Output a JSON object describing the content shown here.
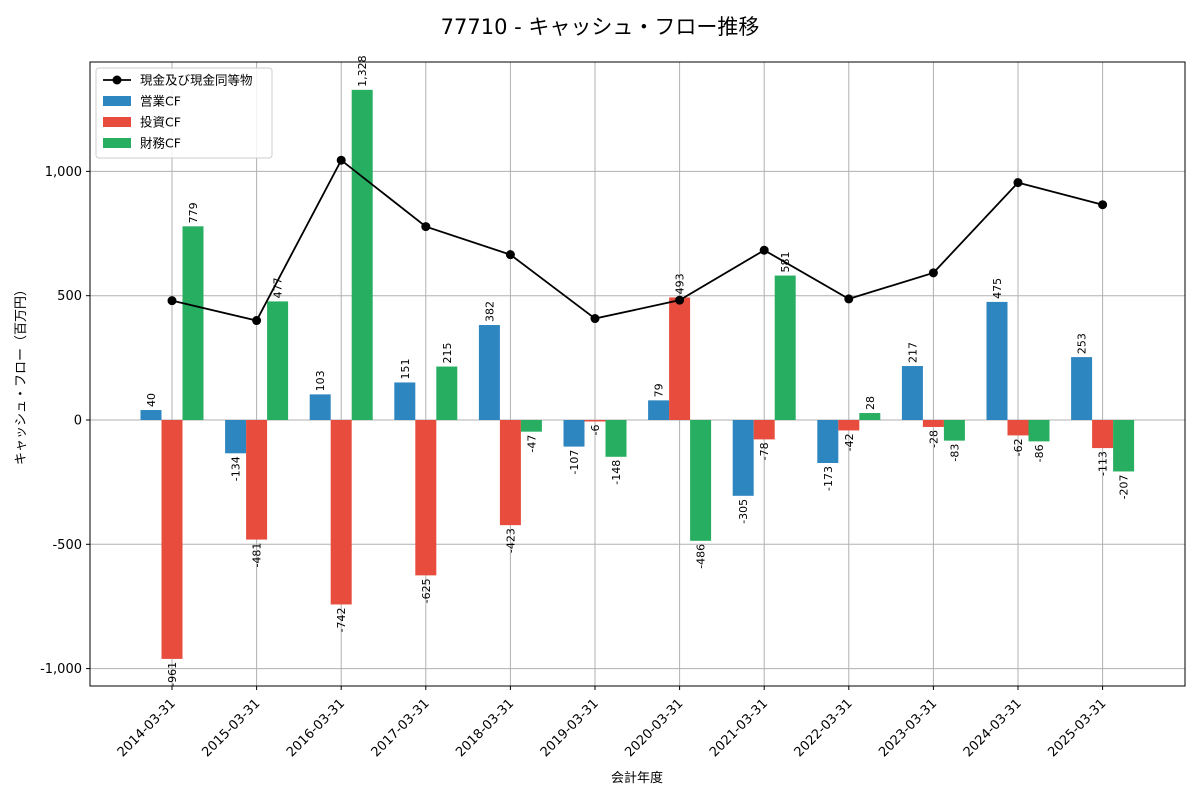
{
  "chart_data": {
    "type": "bar",
    "title": "77710 - キャッシュ・フロー推移",
    "xlabel": "会計年度",
    "ylabel": "キャッシュ・フロー（百万円）",
    "ylim": [
      -1070,
      1440
    ],
    "yticks": [
      -1000,
      -500,
      0,
      500,
      1000
    ],
    "ytick_labels": [
      "-1,000",
      "-500",
      "0",
      "500",
      "1,000"
    ],
    "grid": true,
    "legend_position": "top-left",
    "categories": [
      "2014-03-31",
      "2015-03-31",
      "2016-03-31",
      "2017-03-31",
      "2018-03-31",
      "2019-03-31",
      "2020-03-31",
      "2021-03-31",
      "2022-03-31",
      "2023-03-31",
      "2024-03-31",
      "2025-03-31"
    ],
    "series": [
      {
        "name": "営業CF",
        "kind": "bar",
        "color": "#2e86c1",
        "values": [
          40,
          -134,
          103,
          151,
          382,
          -107,
          79,
          -305,
          -173,
          217,
          475,
          253
        ],
        "labels": [
          "40",
          "-134",
          "103",
          "151",
          "382",
          "-107",
          "79",
          "-305",
          "-173",
          "217",
          "475",
          "253"
        ]
      },
      {
        "name": "投資CF",
        "kind": "bar",
        "color": "#e74c3c",
        "values": [
          -961,
          -481,
          -742,
          -625,
          -423,
          -6,
          493,
          -78,
          -42,
          -28,
          -62,
          -113
        ],
        "labels": [
          "-961",
          "-481",
          "-742",
          "-625",
          "-423",
          "-6",
          "493",
          "-78",
          "-42",
          "-28",
          "-62",
          "-113"
        ]
      },
      {
        "name": "財務CF",
        "kind": "bar",
        "color": "#27ae60",
        "values": [
          779,
          477,
          1328,
          215,
          -47,
          -148,
          -486,
          581,
          28,
          -83,
          -86,
          -207
        ],
        "labels": [
          "779",
          "477",
          "1,328",
          "215",
          "-47",
          "-148",
          "-486",
          "581",
          "28",
          "-83",
          "-86",
          "-207"
        ]
      },
      {
        "name": "現金及び現金同等物",
        "kind": "line",
        "color": "#000000",
        "values": [
          480,
          400,
          1045,
          778,
          665,
          408,
          482,
          683,
          487,
          592,
          955,
          866
        ]
      }
    ]
  }
}
